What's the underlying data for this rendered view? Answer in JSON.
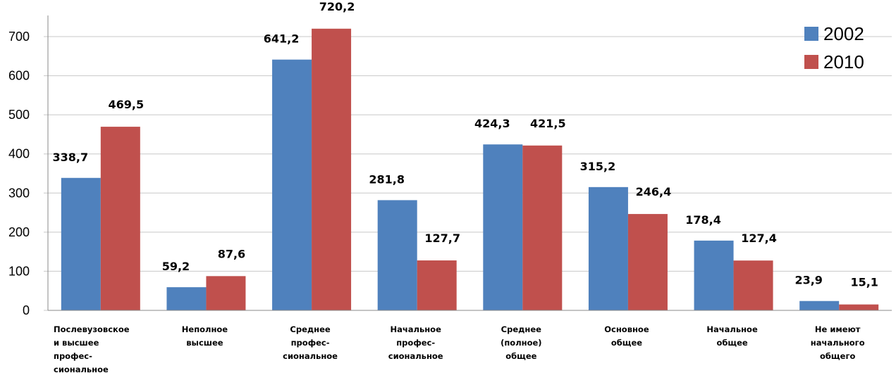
{
  "chart_data": {
    "type": "bar",
    "title": "",
    "xlabel": "",
    "ylabel": "",
    "ylim": [
      0,
      700
    ],
    "yticks": [
      0,
      100,
      200,
      300,
      400,
      500,
      600,
      700
    ],
    "yticks_labels": [
      "0",
      "100",
      "200",
      "300",
      "400",
      "500",
      "600",
      "700"
    ],
    "grid": true,
    "legend_position": "top-right",
    "categories": [
      [
        "Послевузовское",
        "и высшее",
        "профес-",
        "сиональное"
      ],
      [
        "Неполное",
        "высшее"
      ],
      [
        "Среднее",
        "профес-",
        "сиональное"
      ],
      [
        "Начальное",
        "профес-",
        "сиональное"
      ],
      [
        "Среднее",
        "(полное)",
        "общее"
      ],
      [
        "Основное",
        "общее"
      ],
      [
        "Начальное",
        "общее"
      ],
      [
        "Не имеют",
        "начального",
        "общего"
      ]
    ],
    "series": [
      {
        "name": "2002",
        "color": "#4F81BD",
        "values": [
          338.7,
          59.2,
          641.2,
          281.8,
          424.3,
          315.2,
          178.4,
          23.9
        ],
        "labels": [
          "338,7",
          "59,2",
          "641,2",
          "281,8",
          "424,3",
          "315,2",
          "178,4",
          "23,9"
        ]
      },
      {
        "name": "2010",
        "color": "#C0504D",
        "values": [
          469.5,
          87.6,
          720.2,
          127.7,
          421.5,
          246.4,
          127.4,
          15.1
        ],
        "labels": [
          "469,5",
          "87,6",
          "720,2",
          "127,7",
          "421,5",
          "246,4",
          "127,4",
          "15,1"
        ]
      }
    ]
  }
}
